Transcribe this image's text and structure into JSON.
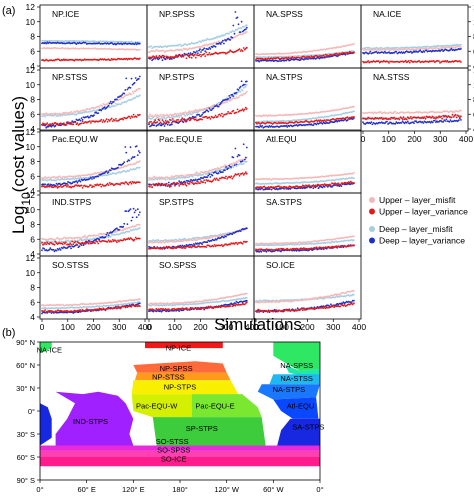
{
  "panel_a_label": "(a)",
  "panel_b_label": "(b)",
  "ylabel_prefix": "Log",
  "ylabel_sub": "10",
  "ylabel_suffix": "(cost values)",
  "xlabel": "Simulations",
  "legend": [
    {
      "name": "Upper – layer_misfit",
      "color": "#f4b8b8"
    },
    {
      "name": "Upper – layer_variance",
      "color": "#e31a1c"
    },
    {
      "name": "Deep – layer_misfit",
      "color": "#a6cee3"
    },
    {
      "name": "Deep – layer_variance",
      "color": "#1f30c8"
    }
  ],
  "chart_data": [
    {
      "type": "scatter",
      "title": "",
      "xlabel": "Simulations",
      "ylabel": "Log10(cost values)",
      "xlim": [
        0,
        400
      ],
      "ylim": [
        4,
        12
      ],
      "x_ticks": [
        0,
        100,
        200,
        300,
        400
      ],
      "x_tick_labels": [
        "0",
        "100",
        "200",
        "300",
        "400"
      ],
      "y_ticks": [
        4,
        6,
        8,
        10,
        12
      ],
      "grid": false,
      "legend_position": "right",
      "series_names": [
        "Upper – layer_misfit",
        "Upper – layer_variance",
        "Deep – layer_misfit",
        "Deep – layer_variance"
      ],
      "panels": [
        {
          "name": "NP.ICE",
          "row": 0,
          "col": 0,
          "n": 380,
          "start": [
            6.4,
            4.8,
            7.4,
            7.1
          ],
          "end": [
            6.2,
            5.0,
            7.2,
            7.0
          ],
          "spread": 0.25,
          "spike": 0
        },
        {
          "name": "NP.SPSS",
          "row": 0,
          "col": 1,
          "n": 380,
          "start": [
            6.0,
            5.2,
            6.6,
            5.0
          ],
          "end": [
            8.6,
            6.3,
            9.5,
            9.2
          ],
          "spread": 0.6,
          "spike": 11.6
        },
        {
          "name": "NA.SPSS",
          "row": 0,
          "col": 2,
          "n": 380,
          "start": [
            5.6,
            5.0,
            5.2,
            4.7
          ],
          "end": [
            7.0,
            5.9,
            6.0,
            5.8
          ],
          "spread": 0.3,
          "spike": 0
        },
        {
          "name": "NA.ICE",
          "row": 0,
          "col": 3,
          "n": 380,
          "start": [
            6.2,
            4.6,
            6.4,
            5.8
          ],
          "end": [
            6.6,
            4.6,
            6.9,
            6.3
          ],
          "spread": 0.35,
          "spike": 0
        },
        {
          "name": "NP.STSS",
          "row": 1,
          "col": 0,
          "n": 380,
          "start": [
            6.0,
            4.7,
            5.8,
            4.4
          ],
          "end": [
            9.5,
            5.8,
            8.5,
            11.0
          ],
          "spread": 0.6,
          "spike": 10.8
        },
        {
          "name": "NP.STPS",
          "row": 1,
          "col": 1,
          "n": 380,
          "start": [
            5.8,
            5.0,
            5.4,
            4.5
          ],
          "end": [
            9.0,
            6.8,
            9.8,
            10.5
          ],
          "spread": 0.7,
          "spike": 10.4
        },
        {
          "name": "NA.STPS",
          "row": 1,
          "col": 2,
          "n": 380,
          "start": [
            5.8,
            4.8,
            5.0,
            4.3
          ],
          "end": [
            7.0,
            5.6,
            6.4,
            5.4
          ],
          "spread": 0.3,
          "spike": 0
        },
        {
          "name": "NA.STSS",
          "row": 1,
          "col": 3,
          "n": 380,
          "start": [
            6.2,
            5.4,
            5.4,
            4.8
          ],
          "end": [
            6.4,
            5.8,
            5.8,
            5.2
          ],
          "spread": 0.5,
          "spike": 0
        },
        {
          "name": "Pac.EQU.W",
          "row": 2,
          "col": 0,
          "n": 380,
          "start": [
            5.8,
            4.6,
            5.5,
            4.8
          ],
          "end": [
            8.0,
            5.2,
            7.2,
            9.2
          ],
          "spread": 0.5,
          "spike": 10.2
        },
        {
          "name": "Pac.EQU.E",
          "row": 2,
          "col": 1,
          "n": 380,
          "start": [
            5.8,
            4.8,
            5.6,
            4.8
          ],
          "end": [
            8.5,
            6.5,
            8.0,
            8.5
          ],
          "spread": 0.7,
          "spike": 10.4
        },
        {
          "name": "Atl.EQU",
          "row": 2,
          "col": 2,
          "n": 380,
          "start": [
            5.6,
            4.5,
            5.0,
            4.3
          ],
          "end": [
            6.4,
            5.2,
            5.8,
            5.0
          ],
          "spread": 0.35,
          "spike": 0
        },
        {
          "name": "IND.STPS",
          "row": 3,
          "col": 0,
          "n": 380,
          "start": [
            6.0,
            5.4,
            5.6,
            4.6
          ],
          "end": [
            8.0,
            6.2,
            7.5,
            9.5
          ],
          "spread": 0.6,
          "spike": 10.2
        },
        {
          "name": "SP.STPS",
          "row": 3,
          "col": 1,
          "n": 380,
          "start": [
            5.6,
            4.8,
            5.8,
            4.8
          ],
          "end": [
            7.4,
            5.6,
            7.4,
            7.6
          ],
          "spread": 0.4,
          "spike": 0
        },
        {
          "name": "SA.STPS",
          "row": 3,
          "col": 2,
          "n": 380,
          "start": [
            5.4,
            4.6,
            5.2,
            4.4
          ],
          "end": [
            6.4,
            5.2,
            5.9,
            5.2
          ],
          "spread": 0.3,
          "spike": 0
        },
        {
          "name": "SO.STSS",
          "row": 4,
          "col": 0,
          "n": 380,
          "start": [
            5.6,
            4.8,
            5.2,
            4.6
          ],
          "end": [
            6.4,
            5.6,
            6.0,
            5.8
          ],
          "spread": 0.35,
          "spike": 0
        },
        {
          "name": "SO.SPSS",
          "row": 4,
          "col": 1,
          "n": 380,
          "start": [
            5.8,
            5.0,
            5.6,
            4.8
          ],
          "end": [
            7.2,
            5.8,
            6.6,
            6.2
          ],
          "spread": 0.35,
          "spike": 0
        },
        {
          "name": "SO.ICE",
          "row": 4,
          "col": 2,
          "n": 380,
          "start": [
            6.0,
            4.8,
            6.2,
            4.8
          ],
          "end": [
            7.6,
            5.8,
            7.0,
            6.2
          ],
          "spread": 0.4,
          "spike": 0
        }
      ]
    },
    {
      "type": "heatmap",
      "title": "",
      "x_tick_labels": [
        "0°",
        "60° E",
        "120° E",
        "180°",
        "120° W",
        "60° W",
        "0°"
      ],
      "y_tick_labels": [
        "90° N",
        "60° N",
        "30° N",
        "0°",
        "30° S",
        "60° S",
        "90° S"
      ],
      "regions": [
        {
          "name": "NA-ICE",
          "color": "#2ee864"
        },
        {
          "name": "NP-ICE",
          "color": "#f01818"
        },
        {
          "name": "NP-SPSS",
          "color": "#ff6a3a"
        },
        {
          "name": "NP-STSS",
          "color": "#ff9a1a"
        },
        {
          "name": "NP-STPS",
          "color": "#f8f000"
        },
        {
          "name": "Pac-EQU-W",
          "color": "#d4f000"
        },
        {
          "name": "Pac-EQU-E",
          "color": "#7ae830"
        },
        {
          "name": "IND-STPS",
          "color": "#a020ff"
        },
        {
          "name": "SP-STPS",
          "color": "#3ccc3c"
        },
        {
          "name": "SO-STSS",
          "color": "#e82ad8"
        },
        {
          "name": "SO-SPSS",
          "color": "#ff40b0"
        },
        {
          "name": "SO-ICE",
          "color": "#ff1c8c"
        },
        {
          "name": "NA-SPSS",
          "color": "#20e8a8"
        },
        {
          "name": "NA-STSS",
          "color": "#20b8f0"
        },
        {
          "name": "NA-STPS",
          "color": "#1a78ff"
        },
        {
          "name": "Atl-EQU",
          "color": "#0a48ff"
        },
        {
          "name": "SA-STPS",
          "color": "#1828e0"
        }
      ]
    }
  ]
}
